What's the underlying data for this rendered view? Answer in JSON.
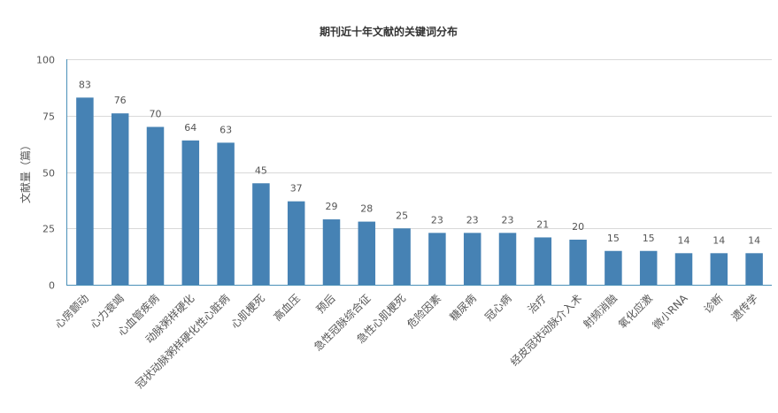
{
  "chart_data": {
    "type": "bar",
    "title": "期刊近十年文献的关键词分布",
    "ylabel": "文献量（篇）",
    "xlabel": "",
    "ylim": [
      0,
      100
    ],
    "yticks": [
      0,
      25,
      50,
      75,
      100
    ],
    "grid": true,
    "bar_color": "#4682b4",
    "categories": [
      "心房颤动",
      "心力衰竭",
      "心血管疾病",
      "动脉粥样硬化",
      "冠状动脉粥样硬化性心脏病",
      "心肌梗死",
      "高血压",
      "预后",
      "急性冠脉综合征",
      "急性心肌梗死",
      "危险因素",
      "糖尿病",
      "冠心病",
      "治疗",
      "经皮冠状动脉介入术",
      "射频消融",
      "氧化应激",
      "微小RNA",
      "诊断",
      "遗传学"
    ],
    "values": [
      83,
      76,
      70,
      64,
      63,
      45,
      37,
      29,
      28,
      25,
      23,
      23,
      23,
      21,
      20,
      15,
      15,
      14,
      14,
      14
    ]
  }
}
